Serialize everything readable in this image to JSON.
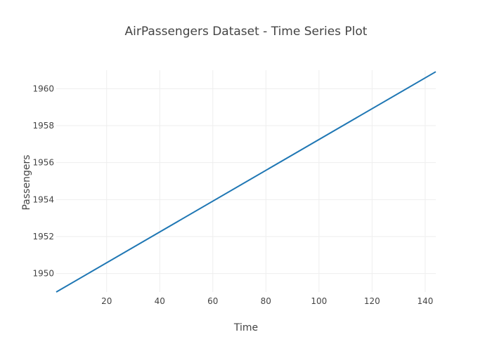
{
  "chart_data": {
    "type": "line",
    "title": "AirPassengers Dataset - Time Series Plot",
    "xlabel": "Time",
    "ylabel": "Passengers",
    "xlim": [
      1,
      144
    ],
    "ylim": [
      1949,
      1961
    ],
    "x_ticks": [
      20,
      40,
      60,
      80,
      100,
      120,
      140
    ],
    "y_ticks": [
      1950,
      1952,
      1954,
      1956,
      1958,
      1960
    ],
    "grid": true,
    "colors": {
      "line": "#1f77b4",
      "grid": "#eeeeee",
      "text": "#444444"
    },
    "series": [
      {
        "x": [
          1,
          144
        ],
        "y": [
          1949.0,
          1960.9167
        ]
      }
    ]
  }
}
